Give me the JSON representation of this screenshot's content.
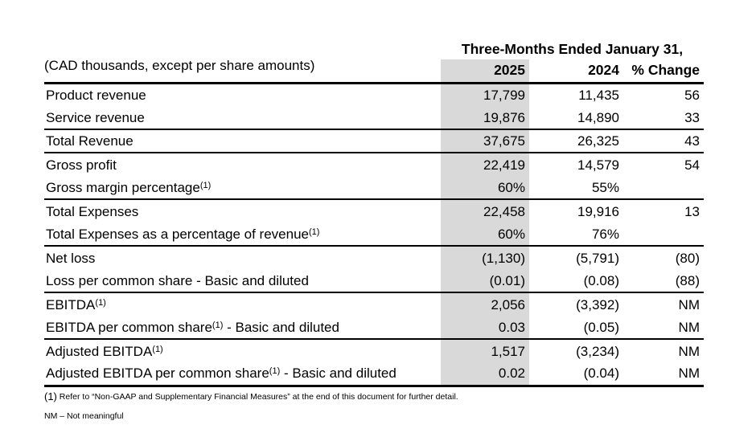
{
  "doc_label": "(CAD thousands, except per share amounts)",
  "table": {
    "period_header": "Three-Months Ended January 31,",
    "columns": [
      "2025",
      "2024",
      "% Change"
    ],
    "highlight_color": "#d9d9d9",
    "rows": [
      {
        "label": "Product revenue",
        "sup": "",
        "suffix": "",
        "y2025": "17,799",
        "y2024": "11,435",
        "change": "56"
      },
      {
        "label": "Service revenue",
        "sup": "",
        "suffix": "",
        "y2025": "19,876",
        "y2024": "14,890",
        "change": "33"
      },
      {
        "label": "Total Revenue",
        "sup": "",
        "suffix": "",
        "y2025": "37,675",
        "y2024": "26,325",
        "change": "43"
      },
      {
        "label": "Gross profit",
        "sup": "",
        "suffix": "",
        "y2025": "22,419",
        "y2024": "14,579",
        "change": "54"
      },
      {
        "label": "Gross margin percentage",
        "sup": "(1)",
        "suffix": "",
        "y2025": "60%",
        "y2024": "55%",
        "change": ""
      },
      {
        "label": "Total Expenses",
        "sup": "",
        "suffix": "",
        "y2025": "22,458",
        "y2024": "19,916",
        "change": "13"
      },
      {
        "label": "Total Expenses as a percentage of revenue",
        "sup": "(1)",
        "suffix": "",
        "y2025": "60%",
        "y2024": "76%",
        "change": ""
      },
      {
        "label": "Net loss",
        "sup": "",
        "suffix": "",
        "y2025": "(1,130)",
        "y2024": "(5,791)",
        "change": "(80)"
      },
      {
        "label": "Loss per common share - Basic and diluted",
        "sup": "",
        "suffix": "",
        "y2025": "(0.01)",
        "y2024": "(0.08)",
        "change": "(88)"
      },
      {
        "label": "EBITDA",
        "sup": "(1)",
        "suffix": "",
        "y2025": "2,056",
        "y2024": "(3,392)",
        "change": "NM"
      },
      {
        "label": "EBITDA per common share",
        "sup": "(1)",
        "suffix": " - Basic and diluted",
        "y2025": "0.03",
        "y2024": "(0.05)",
        "change": "NM"
      },
      {
        "label": "Adjusted EBITDA",
        "sup": "(1)",
        "suffix": "",
        "y2025": "1,517",
        "y2024": "(3,234)",
        "change": "NM"
      },
      {
        "label": "Adjusted EBITDA per common share",
        "sup": "(1)",
        "suffix": " - Basic and diluted",
        "y2025": "0.02",
        "y2024": "(0.04)",
        "change": "NM"
      }
    ]
  },
  "footnotes": {
    "note1_marker": "(1)",
    "note1_text": " Refer to “Non-GAAP and Supplementary Financial Measures” at the end of this document for further detail.",
    "note2": "NM – Not meaningful"
  }
}
